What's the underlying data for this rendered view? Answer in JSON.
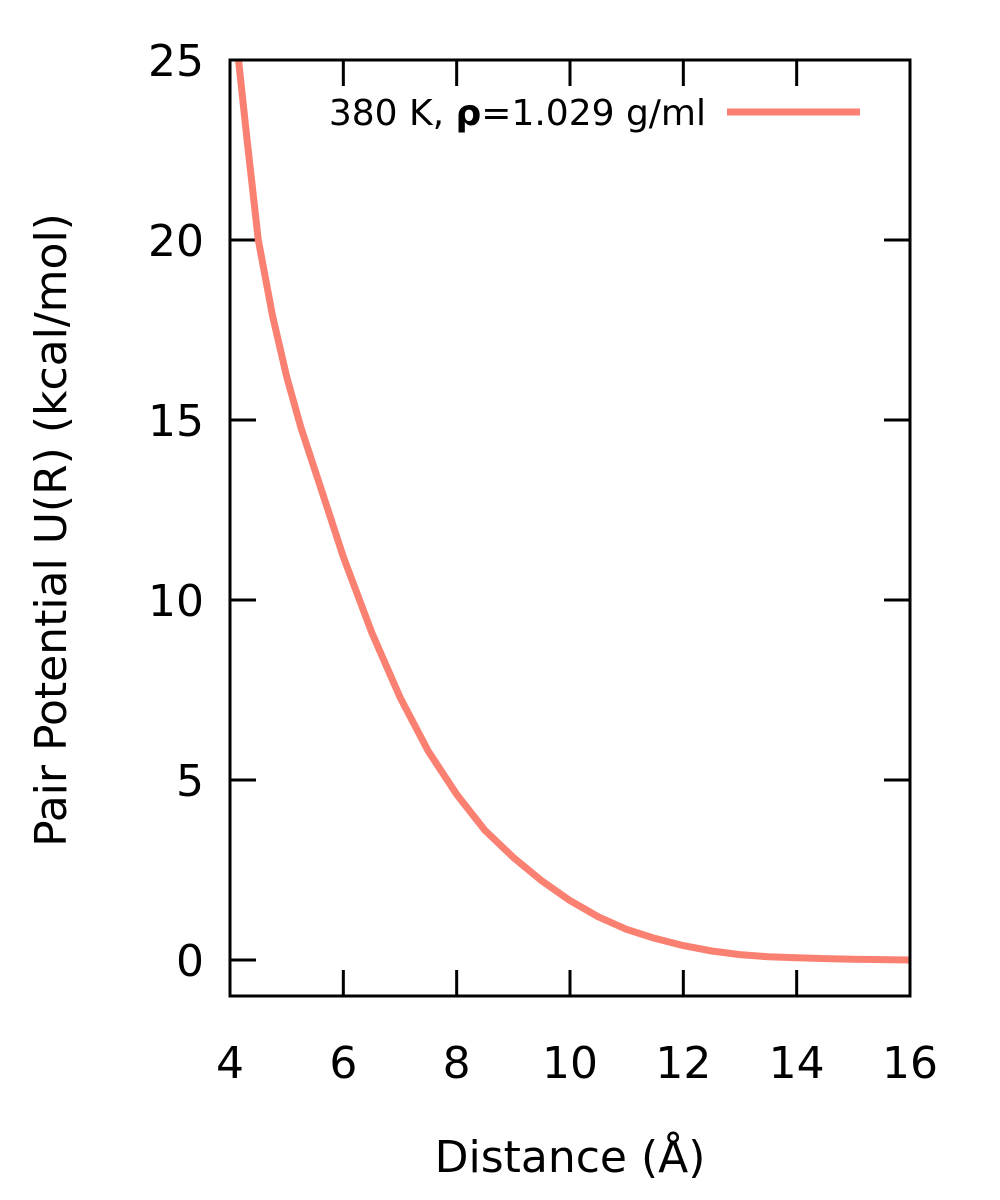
{
  "chart_data": {
    "type": "line",
    "title": "",
    "xlabel": "Distance (Å)",
    "ylabel": "Pair Potential U(R) (kcal/mol)",
    "xlim": [
      4,
      16
    ],
    "ylim": [
      -1,
      25
    ],
    "xticks": [
      4,
      6,
      8,
      10,
      12,
      14,
      16
    ],
    "yticks": [
      0,
      5,
      10,
      15,
      20,
      25
    ],
    "grid": false,
    "legend_position": "top-right",
    "series": [
      {
        "name": "380 K, ρ=1.029 g/ml",
        "legend_prefix": "380 K, ",
        "legend_symbol": "ρ",
        "legend_suffix": "=1.029 g/ml",
        "color": "#fa8072",
        "x": [
          4.15,
          4.3,
          4.5,
          4.75,
          5.0,
          5.25,
          5.5,
          5.75,
          6.0,
          6.5,
          7.0,
          7.5,
          8.0,
          8.5,
          9.0,
          9.5,
          10.0,
          10.5,
          11.0,
          11.5,
          12.0,
          12.5,
          13.0,
          13.5,
          14.0,
          14.5,
          15.0,
          15.5,
          16.0
        ],
        "y": [
          25.0,
          22.8,
          20.0,
          17.9,
          16.2,
          14.8,
          13.6,
          12.4,
          11.2,
          9.1,
          7.3,
          5.8,
          4.6,
          3.6,
          2.85,
          2.2,
          1.65,
          1.2,
          0.85,
          0.6,
          0.4,
          0.25,
          0.15,
          0.09,
          0.06,
          0.04,
          0.02,
          0.01,
          0.0
        ]
      }
    ]
  }
}
